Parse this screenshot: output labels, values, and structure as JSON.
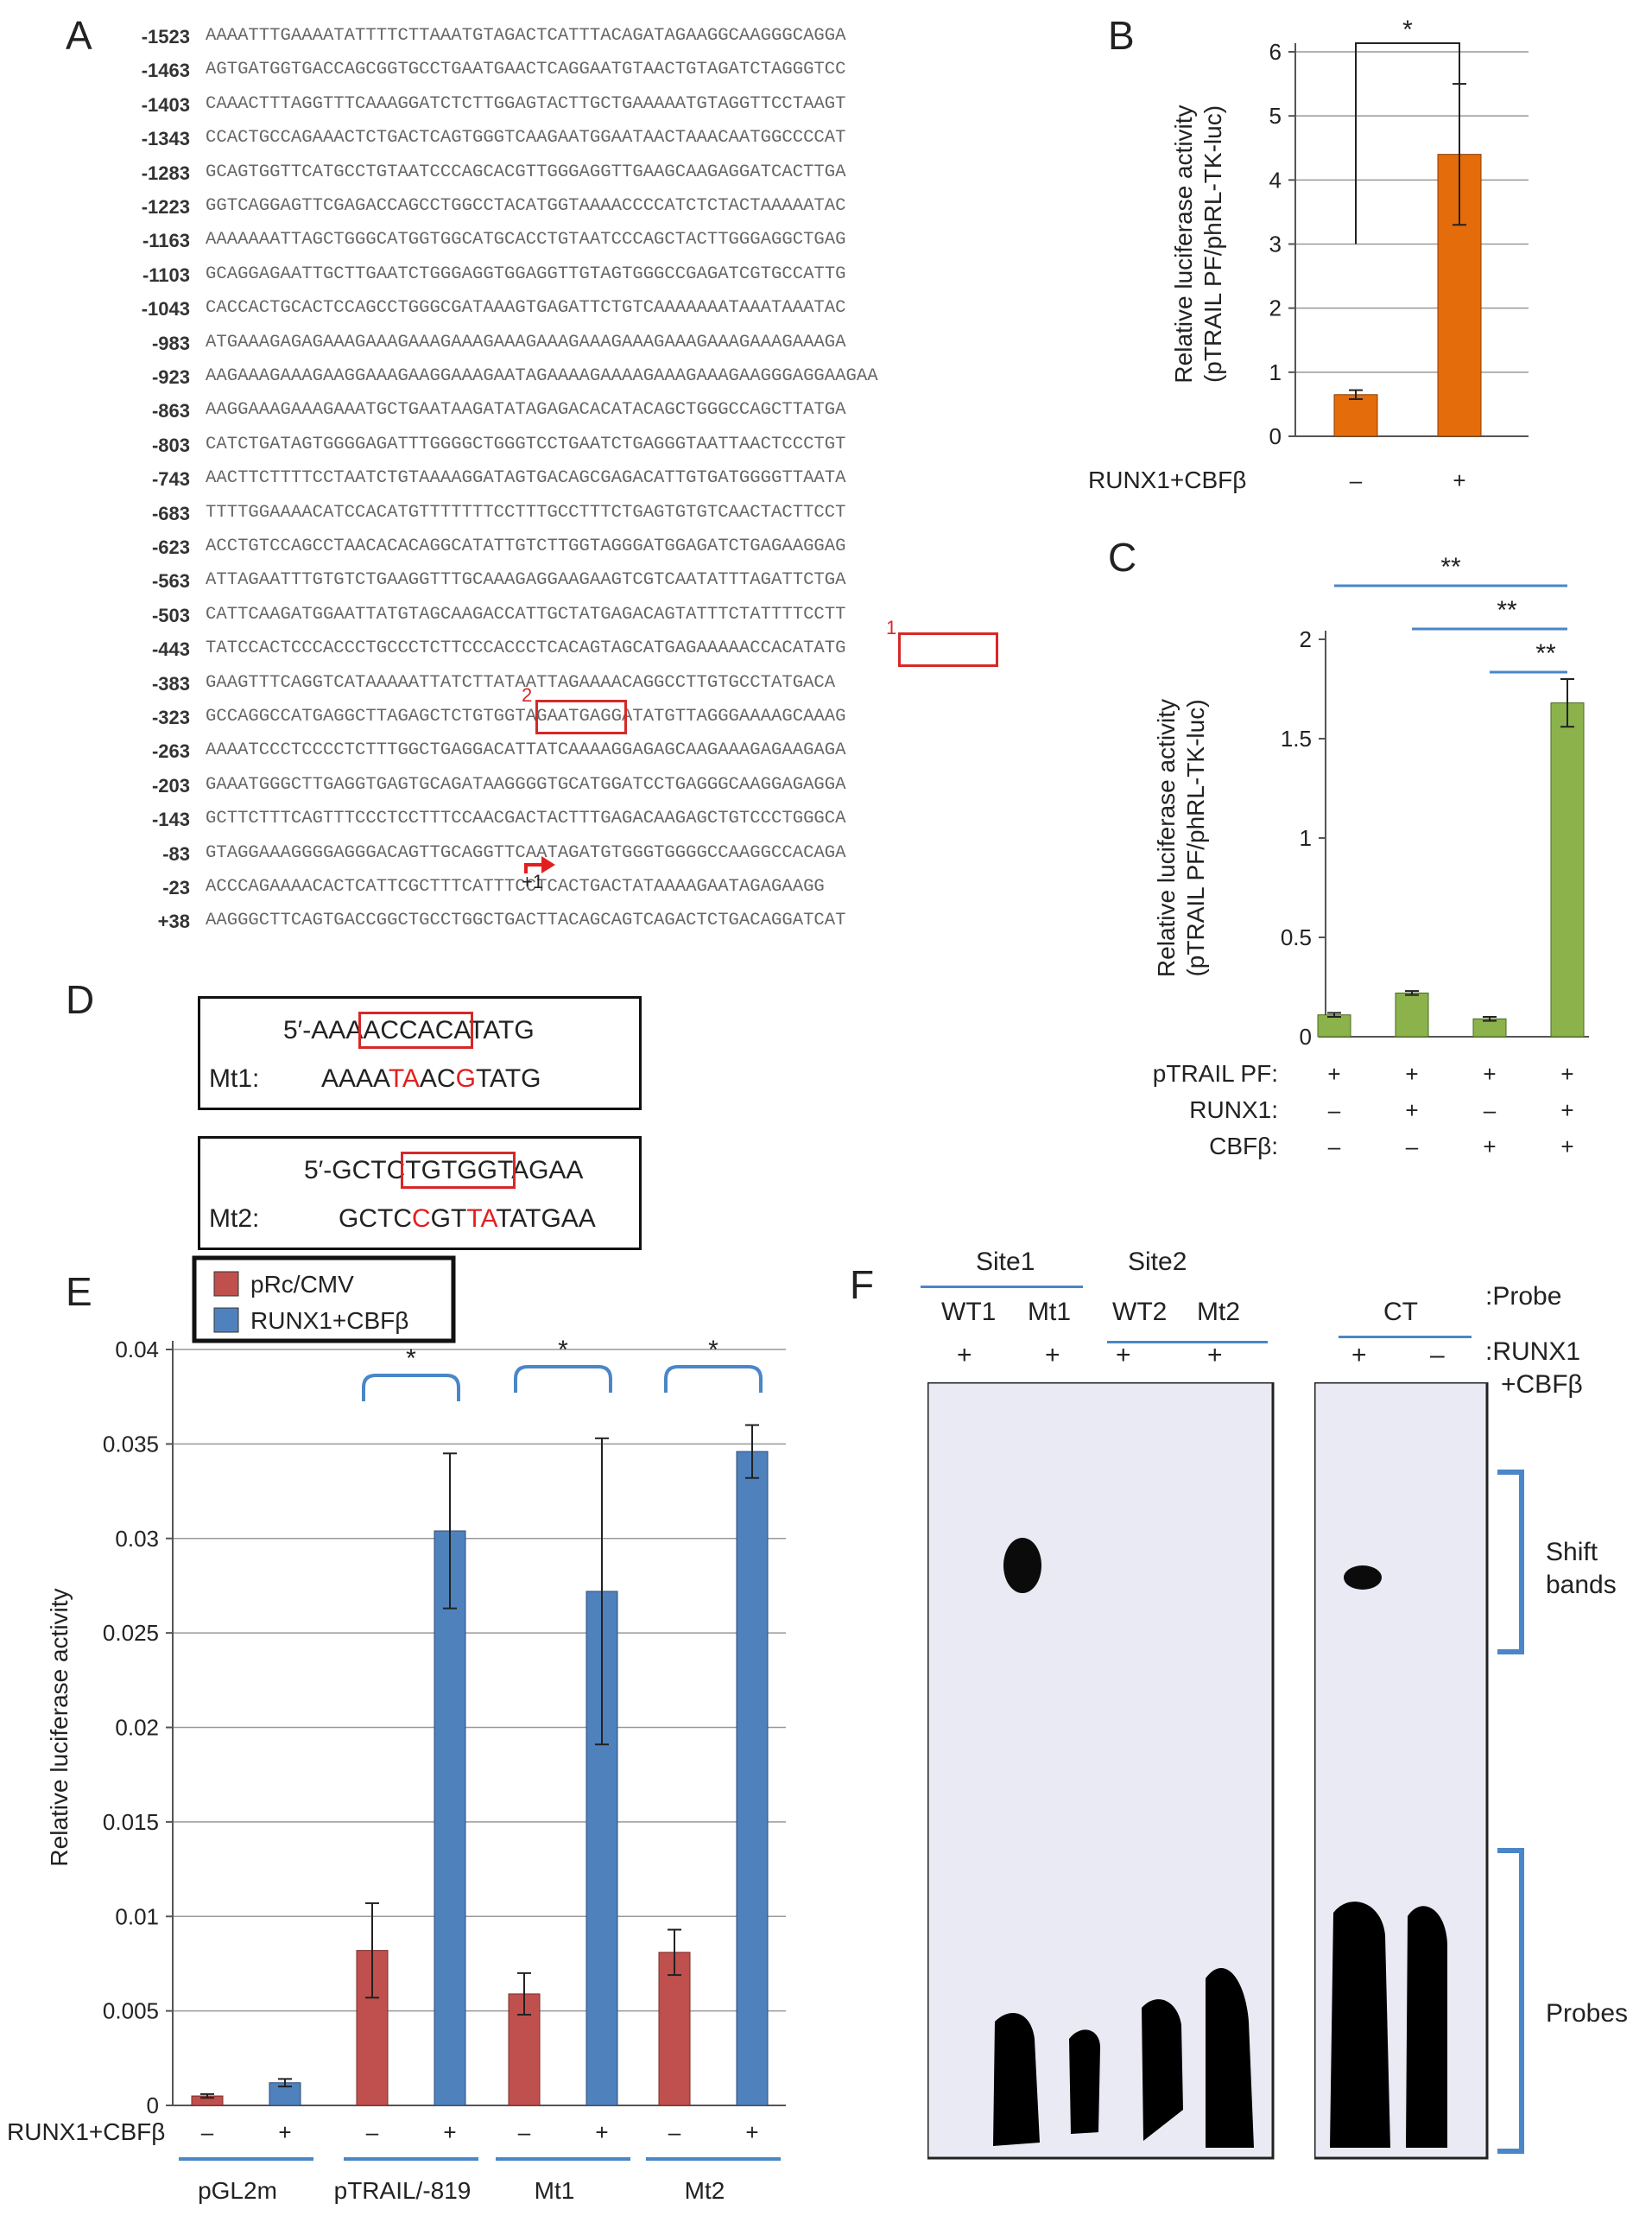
{
  "panels": {
    "A": "A",
    "B": "B",
    "C": "C",
    "D": "D",
    "E": "E",
    "F": "F"
  },
  "panel_a": {
    "rows": [
      {
        "num": "-1523",
        "seq": "AAAATTTGAAAATATTTTCTTAAATGTAGACTCATTTACAGATAGAAGGCAAGGGCAGGA"
      },
      {
        "num": "-1463",
        "seq": "AGTGATGGTGACCAGCGGTGCCTGAATGAACTCAGGAATGTAACTGTAGATCTAGGGTCC"
      },
      {
        "num": "-1403",
        "seq": "CAAACTTTAGGTTTCAAAGGATCTCTTGGAGTACTTGCTGAAAAATGTAGGTTCCTAAGT"
      },
      {
        "num": "-1343",
        "seq": "CCACTGCCAGAAACTCTGACTCAGTGGGTCAAGAATGGAATAACTAAACAATGGCCCCAT"
      },
      {
        "num": "-1283",
        "seq": "GCAGTGGTTCATGCCTGTAATCCCAGCACGTTGGGAGGTTGAAGCAAGAGGATCACTTGA"
      },
      {
        "num": "-1223",
        "seq": "GGTCAGGAGTTCGAGACCAGCCTGGCCTACATGGTAAAACCCCATCTCTACTAAAAATAC"
      },
      {
        "num": "-1163",
        "seq": "AAAAAAATTAGCTGGGCATGGTGGCATGCACCTGTAATCCCAGCTACTTGGGAGGCTGAG"
      },
      {
        "num": "-1103",
        "seq": "GCAGGAGAATTGCTTGAATCTGGGAGGTGGAGGTTGTAGTGGGCCGAGATCGTGCCATTG"
      },
      {
        "num": "-1043",
        "seq": "CACCACTGCACTCCAGCCTGGGCGATAAAGTGAGATTCTGTCAAAAAAATAAATAAATAC"
      },
      {
        "num": "-983",
        "seq": "ATGAAAGAGAGAAAGAAAGAAAGAAAGAAAGAAAGAAAGAAAGAAAGAAAGAAAGAAAGA"
      },
      {
        "num": "-923",
        "seq": "AAGAAAGAAAGAAGGAAAGAAGGAAAGAATAGAAAAGAAAAGAAAGAAAGAAGGGAGGAAGAA"
      },
      {
        "num": "-863",
        "seq": "AAGGAAAGAAAGAAATGCTGAATAAGATATAGAGACACATACAGCTGGGCCAGCTTATGA"
      },
      {
        "num": "-803",
        "seq": "CATCTGATAGTGGGGAGATTTGGGGCTGGGTCCTGAATCTGAGGGTAATTAACTCCCTGT"
      },
      {
        "num": "-743",
        "seq": "AACTTCTTTTCCTAATCTGTAAAAGGATAGTGACAGCGAGACATTGTGATGGGGTTAATA"
      },
      {
        "num": "-683",
        "seq": "TTTTGGAAAACATCCACATGTTTTTTTCCTTTGCCTTTCTGAGTGTGTCAACTACTTCCT"
      },
      {
        "num": "-623",
        "seq": "ACCTGTCCAGCCTAACACACAGGCATATTGTCTTGGTAGGGATGGAGATCTGAGAAGGAG"
      },
      {
        "num": "-563",
        "seq": "ATTAGAATTTGTGTCTGAAGGTTTGCAAAGAGGAAGAAGTCGTCAATATTTAGATTCTGA"
      },
      {
        "num": "-503",
        "seq": "CATTCAAGATGGAATTATGTAGCAAGACCATTGCTATGAGACAGTATTTCTATTTTCCTT"
      },
      {
        "num": "-443",
        "seq": "TATCCACTCCCACCCTGCCCTCTTCCCACCCTCACAGTAGCATGAGAAAAACCACATATG"
      },
      {
        "num": "-383",
        "seq": "GAAGTTTCAGGTCATAAAAATTATCTTATAATTAGAAAACAGGCCTTGTGCCTATGACA"
      },
      {
        "num": "-323",
        "seq": "GCCAGGCCATGAGGCTTAGAGCTCTGTGGTAGAATGAGGATATGTTAGGGAAAAGCAAAG"
      },
      {
        "num": "-263",
        "seq": "AAAATCCCTCCCCTCTTTGGCTGAGGACATTATCAAAAGGAGAGCAAGAAAGAGAAGAGA"
      },
      {
        "num": "-203",
        "seq": "GAAATGGGCTTGAGGTGAGTGCAGATAAGGGGTGCATGGATCCTGAGGGCAAGGAGAGGA"
      },
      {
        "num": "-143",
        "seq": "GCTTCTTTCAGTTTCCCTCCTTTCCAACGACTACTTTGAGACAAGAGCTGTCCCTGGGCA"
      },
      {
        "num": "-83",
        "seq": "GTAGGAAAGGGGAGGGACAGTTGCAGGTTCAATAGATGTGGGTGGGGCCAAGGCCACAGA"
      },
      {
        "num": "-23",
        "seq": "ACCCAGAAAACACTCATTCGCTTTCATTTCCTCACTGACTATAAAAGAATAGAGAAGG"
      },
      {
        "num": "+38",
        "seq": "AAGGGCTTCAGTGACCGGCTGCCTGGCTGACTTACAGCAGTCAGACTCTGACAGGATCAT"
      }
    ],
    "site1_label": "1",
    "site2_label": "2",
    "tss_label": "+1"
  },
  "panel_d": {
    "box1": {
      "wt_prefix": "5′-AAA",
      "wt_site": "ACCACA",
      "wt_suffix": "TATG",
      "mt_label": "Mt1:",
      "mt_parts": [
        [
          "AAAA",
          false
        ],
        [
          "TA",
          true
        ],
        [
          "AC",
          false
        ],
        [
          "G",
          true
        ],
        [
          "TATG",
          false
        ]
      ]
    },
    "box2": {
      "wt_prefix": "5′-GCTC",
      "wt_site": "TGTGGT",
      "wt_suffix": "AGAA",
      "mt_label": "Mt2:",
      "mt_parts": [
        [
          "GCTC",
          false
        ],
        [
          "C",
          true
        ],
        [
          "GT",
          false
        ],
        [
          "TA",
          true
        ],
        [
          "TATGAA",
          false
        ]
      ]
    }
  },
  "chart_data": [
    {
      "id": "B",
      "type": "bar",
      "ylabel_line1": "Relative luciferase activity",
      "ylabel_line2": "(pTRAIL PF/phRL-TK-luc)",
      "ylim": [
        0,
        6
      ],
      "yticks": [
        "0",
        "1",
        "2",
        "3",
        "4",
        "5",
        "6"
      ],
      "row_label": "RUNX1+CBFβ",
      "categories": [
        "–",
        "+"
      ],
      "values": [
        0.65,
        4.4
      ],
      "errors": [
        0.07,
        1.1
      ],
      "color": "#e46c0a",
      "significance": "*",
      "grid": true
    },
    {
      "id": "C",
      "type": "bar",
      "ylabel_line1": "Relative luciferase activity",
      "ylabel_line2": "(pTRAIL PF/phRL-TK-luc)",
      "ylim": [
        0,
        2
      ],
      "yticks": [
        "0",
        "0.5",
        "1",
        "1.5",
        "2"
      ],
      "row_labels": [
        "pTRAIL PF:",
        "RUNX1:",
        "CBFβ:"
      ],
      "rows": [
        [
          "+",
          "+",
          "+",
          "+"
        ],
        [
          "–",
          "+",
          "–",
          "+"
        ],
        [
          "–",
          "–",
          "+",
          "+"
        ]
      ],
      "values": [
        0.11,
        0.22,
        0.09,
        1.68
      ],
      "errors": [
        0.01,
        0.01,
        0.01,
        0.12
      ],
      "color": "#8cb24c",
      "significance": [
        "**",
        "**",
        "**"
      ]
    },
    {
      "id": "E",
      "type": "bar",
      "ylabel": "Relative luciferase activity",
      "ylim": [
        0,
        0.04
      ],
      "yticks": [
        "0",
        "0.005",
        "0.01",
        "0.015",
        "0.02",
        "0.025",
        "0.03",
        "0.035",
        "0.04"
      ],
      "legend": [
        {
          "name": "pRc/CMV",
          "color": "#c0504d"
        },
        {
          "name": "RUNX1+CBFβ",
          "color": "#4f81bd"
        }
      ],
      "row_label": "RUNX1+CBFβ",
      "signs": [
        "–",
        "+",
        "–",
        "+",
        "–",
        "+",
        "–",
        "+"
      ],
      "groups": [
        "pGL2m",
        "pTRAIL/-819",
        "Mt1",
        "Mt2"
      ],
      "series": [
        {
          "name": "pRc/CMV",
          "values": [
            0.0005,
            0.0082,
            0.0059,
            0.0081
          ],
          "errors": [
            0.0001,
            0.0025,
            0.0011,
            0.0012
          ]
        },
        {
          "name": "RUNX1+CBFβ",
          "values": [
            0.0012,
            0.0304,
            0.0272,
            0.0346
          ],
          "errors": [
            0.0002,
            0.0041,
            0.0081,
            0.0014
          ]
        }
      ],
      "significance": [
        "*",
        "*",
        "*"
      ],
      "grid": true
    }
  ],
  "panel_f": {
    "site1": "Site1",
    "site2": "Site2",
    "lanes": [
      "WT1",
      "Mt1",
      "WT2",
      "Mt2"
    ],
    "ct": "CT",
    "probe_label": ":Probe",
    "runx_label_1": ":RUNX1",
    "runx_label_2": "+CBFβ",
    "lane_signs_left": [
      "+",
      "+",
      "+",
      "+"
    ],
    "lane_signs_right": [
      "+",
      "–"
    ],
    "shift_label_1": "Shift",
    "shift_label_2": "bands",
    "probes_label": "Probes"
  }
}
